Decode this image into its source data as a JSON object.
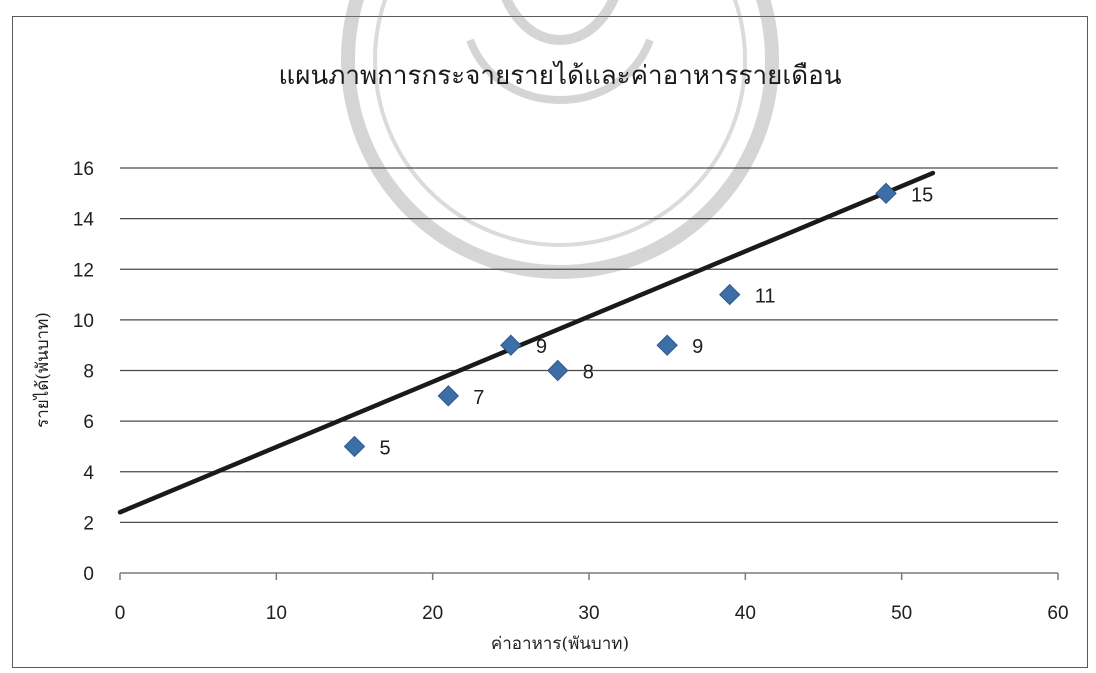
{
  "chart_data": {
    "type": "scatter",
    "title": "แผนภาพการกระจายรายได้และค่าอาหารรายเดือน",
    "xlabel": "ค่าอาหาร(พันบาท)",
    "ylabel": "รายได้(พันบาท)",
    "xlim": [
      0,
      60
    ],
    "ylim": [
      0,
      16
    ],
    "xticks": [
      0,
      10,
      20,
      30,
      40,
      50,
      60
    ],
    "yticks": [
      0,
      2,
      4,
      6,
      8,
      10,
      12,
      14,
      16
    ],
    "grid": "horizontal",
    "legend": "none",
    "series": [
      {
        "x": [
          15,
          21,
          25,
          28,
          35,
          39,
          49
        ],
        "y": [
          5,
          7,
          9,
          8,
          9,
          11,
          15
        ],
        "data_labels": [
          "5",
          "7",
          "9",
          "8",
          "9",
          "11",
          "15"
        ],
        "marker": "diamond",
        "color": "#3d6ea8"
      }
    ],
    "trendline": {
      "x": [
        0,
        52
      ],
      "y": [
        2.4,
        15.8
      ],
      "color": "#1a1a1a"
    }
  }
}
